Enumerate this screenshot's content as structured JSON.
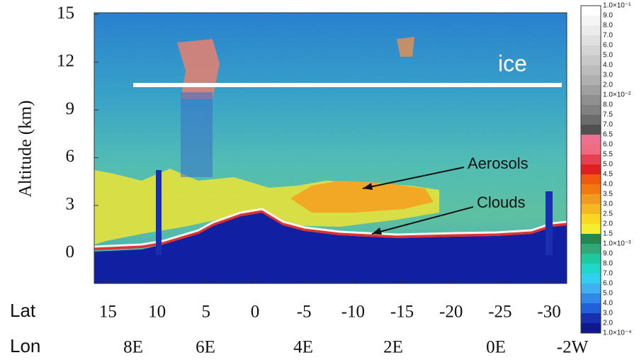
{
  "chart_data": {
    "type": "image",
    "ylabel": "Altitude (km)",
    "ylim": [
      -1.9,
      15.1
    ],
    "yticks": [
      0,
      3,
      6,
      9,
      12,
      15
    ],
    "xlabel": "Lat",
    "xlim": [
      16.4,
      -31.8
    ],
    "xticks": [
      15,
      10,
      5,
      0,
      -5,
      -10,
      -15,
      -20,
      -25,
      -30
    ],
    "lon_label": "Lon",
    "lon_labels": [
      "8E",
      "6E",
      "4E",
      "2E",
      "0E",
      "-2W"
    ],
    "annotations": [
      "ice",
      "Aerosols",
      "Clouds"
    ],
    "colorbar": {
      "labels": [
        "1.0×10⁻¹",
        "9.0",
        "8.0",
        "7.0",
        "6.0",
        "5.0",
        "4.0",
        "3.0",
        "2.0",
        "1.0×10⁻²",
        "8.0",
        "7.5",
        "7.0",
        "6.5",
        "6.0",
        "5.5",
        "5.0",
        "4.5",
        "4.0",
        "3.5",
        "3.0",
        "2.5",
        "2.0",
        "1.5",
        "1.0×10⁻³",
        "9.0",
        "8.0",
        "7.0",
        "6.0",
        "5.0",
        "4.0",
        "3.0",
        "2.0",
        "1.0×10⁻⁴"
      ],
      "colors": [
        "#ffffff",
        "#f5f5f5",
        "#ebebeb",
        "#e0e0e0",
        "#d4d4d4",
        "#c8c8c8",
        "#bcbcbc",
        "#b0b0b0",
        "#a0a0a0",
        "#909090",
        "#808080",
        "#6c6c6c",
        "#505050",
        "#ee7090",
        "#f06a80",
        "#e84050",
        "#e02020",
        "#f05a10",
        "#f07a10",
        "#f09a20",
        "#f5b820",
        "#f8d820",
        "#f5ee30",
        "#208850",
        "#30a878",
        "#20c8a0",
        "#20d8c8",
        "#30d0f0",
        "#40b0f0",
        "#3088e8",
        "#2060d8",
        "#1830b0",
        "#101890"
      ]
    }
  }
}
